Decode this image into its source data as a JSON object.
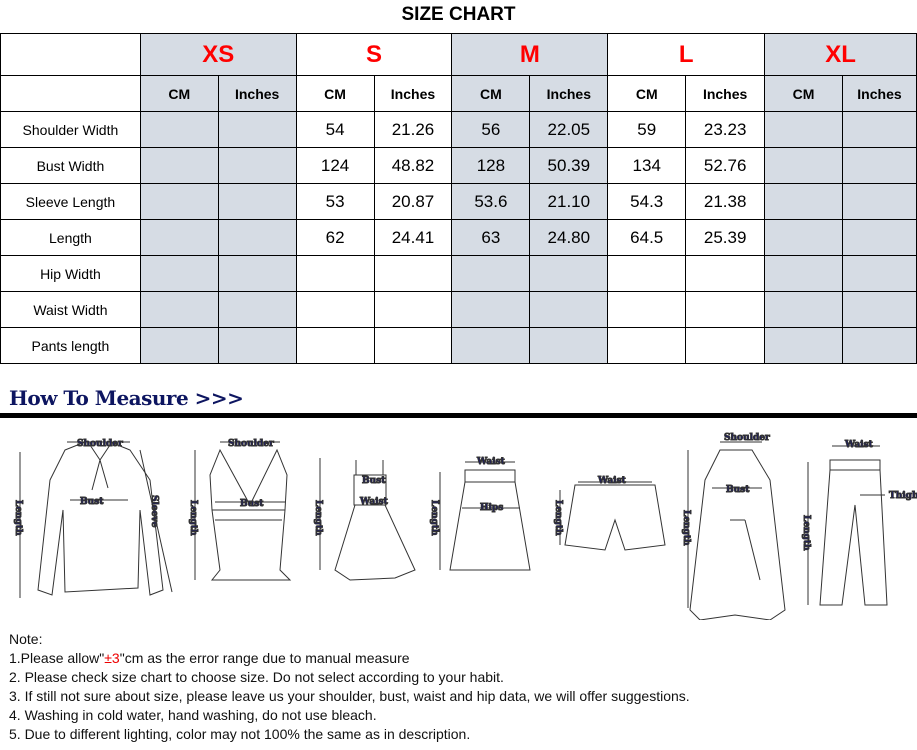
{
  "title": "SIZE CHART",
  "sizes": [
    "XS",
    "S",
    "M",
    "L",
    "XL"
  ],
  "units": [
    "CM",
    "Inches"
  ],
  "rows": [
    {
      "label": "Shoulder Width",
      "values": [
        "",
        "",
        "54",
        "21.26",
        "56",
        "22.05",
        "59",
        "23.23",
        "",
        ""
      ]
    },
    {
      "label": "Bust Width",
      "values": [
        "",
        "",
        "124",
        "48.82",
        "128",
        "50.39",
        "134",
        "52.76",
        "",
        ""
      ]
    },
    {
      "label": "Sleeve Length",
      "values": [
        "",
        "",
        "53",
        "20.87",
        "53.6",
        "21.10",
        "54.3",
        "21.38",
        "",
        ""
      ]
    },
    {
      "label": "Length",
      "values": [
        "",
        "",
        "62",
        "24.41",
        "63",
        "24.80",
        "64.5",
        "25.39",
        "",
        ""
      ]
    },
    {
      "label": "Hip Width",
      "values": [
        "",
        "",
        "",
        "",
        "",
        "",
        "",
        "",
        "",
        ""
      ]
    },
    {
      "label": "Waist Width",
      "values": [
        "",
        "",
        "",
        "",
        "",
        "",
        "",
        "",
        "",
        ""
      ]
    },
    {
      "label": "Pants length",
      "values": [
        "",
        "",
        "",
        "",
        "",
        "",
        "",
        "",
        "",
        ""
      ]
    }
  ],
  "colors": {
    "size_label": "#ff0000",
    "shaded_column": "#d6dce4",
    "heading": "#0d1560"
  },
  "how_to_measure": "How To Measure >>>",
  "diagram_labels": {
    "shoulder": "Shoulder",
    "bust": "Bust",
    "sleeve": "Sleeve",
    "length": "Length",
    "waist": "Waist",
    "hips": "Hips",
    "thigh": "Thigh"
  },
  "notes": {
    "heading": "Note:",
    "n1_pre": "1.Please allow\"",
    "n1_red": "±3",
    "n1_post": "\"cm as the error range due to manual measure",
    "n2": "2. Please check size chart to choose size. Do not select according to your habit.",
    "n3": "3. If still not sure about size, please leave us your shoulder, bust, waist and hip data, we will offer suggestions.",
    "n4": "4. Washing in cold water, hand washing, do not use bleach.",
    "n5": "5. Due to different lighting, color may not 100% the same as in description."
  }
}
